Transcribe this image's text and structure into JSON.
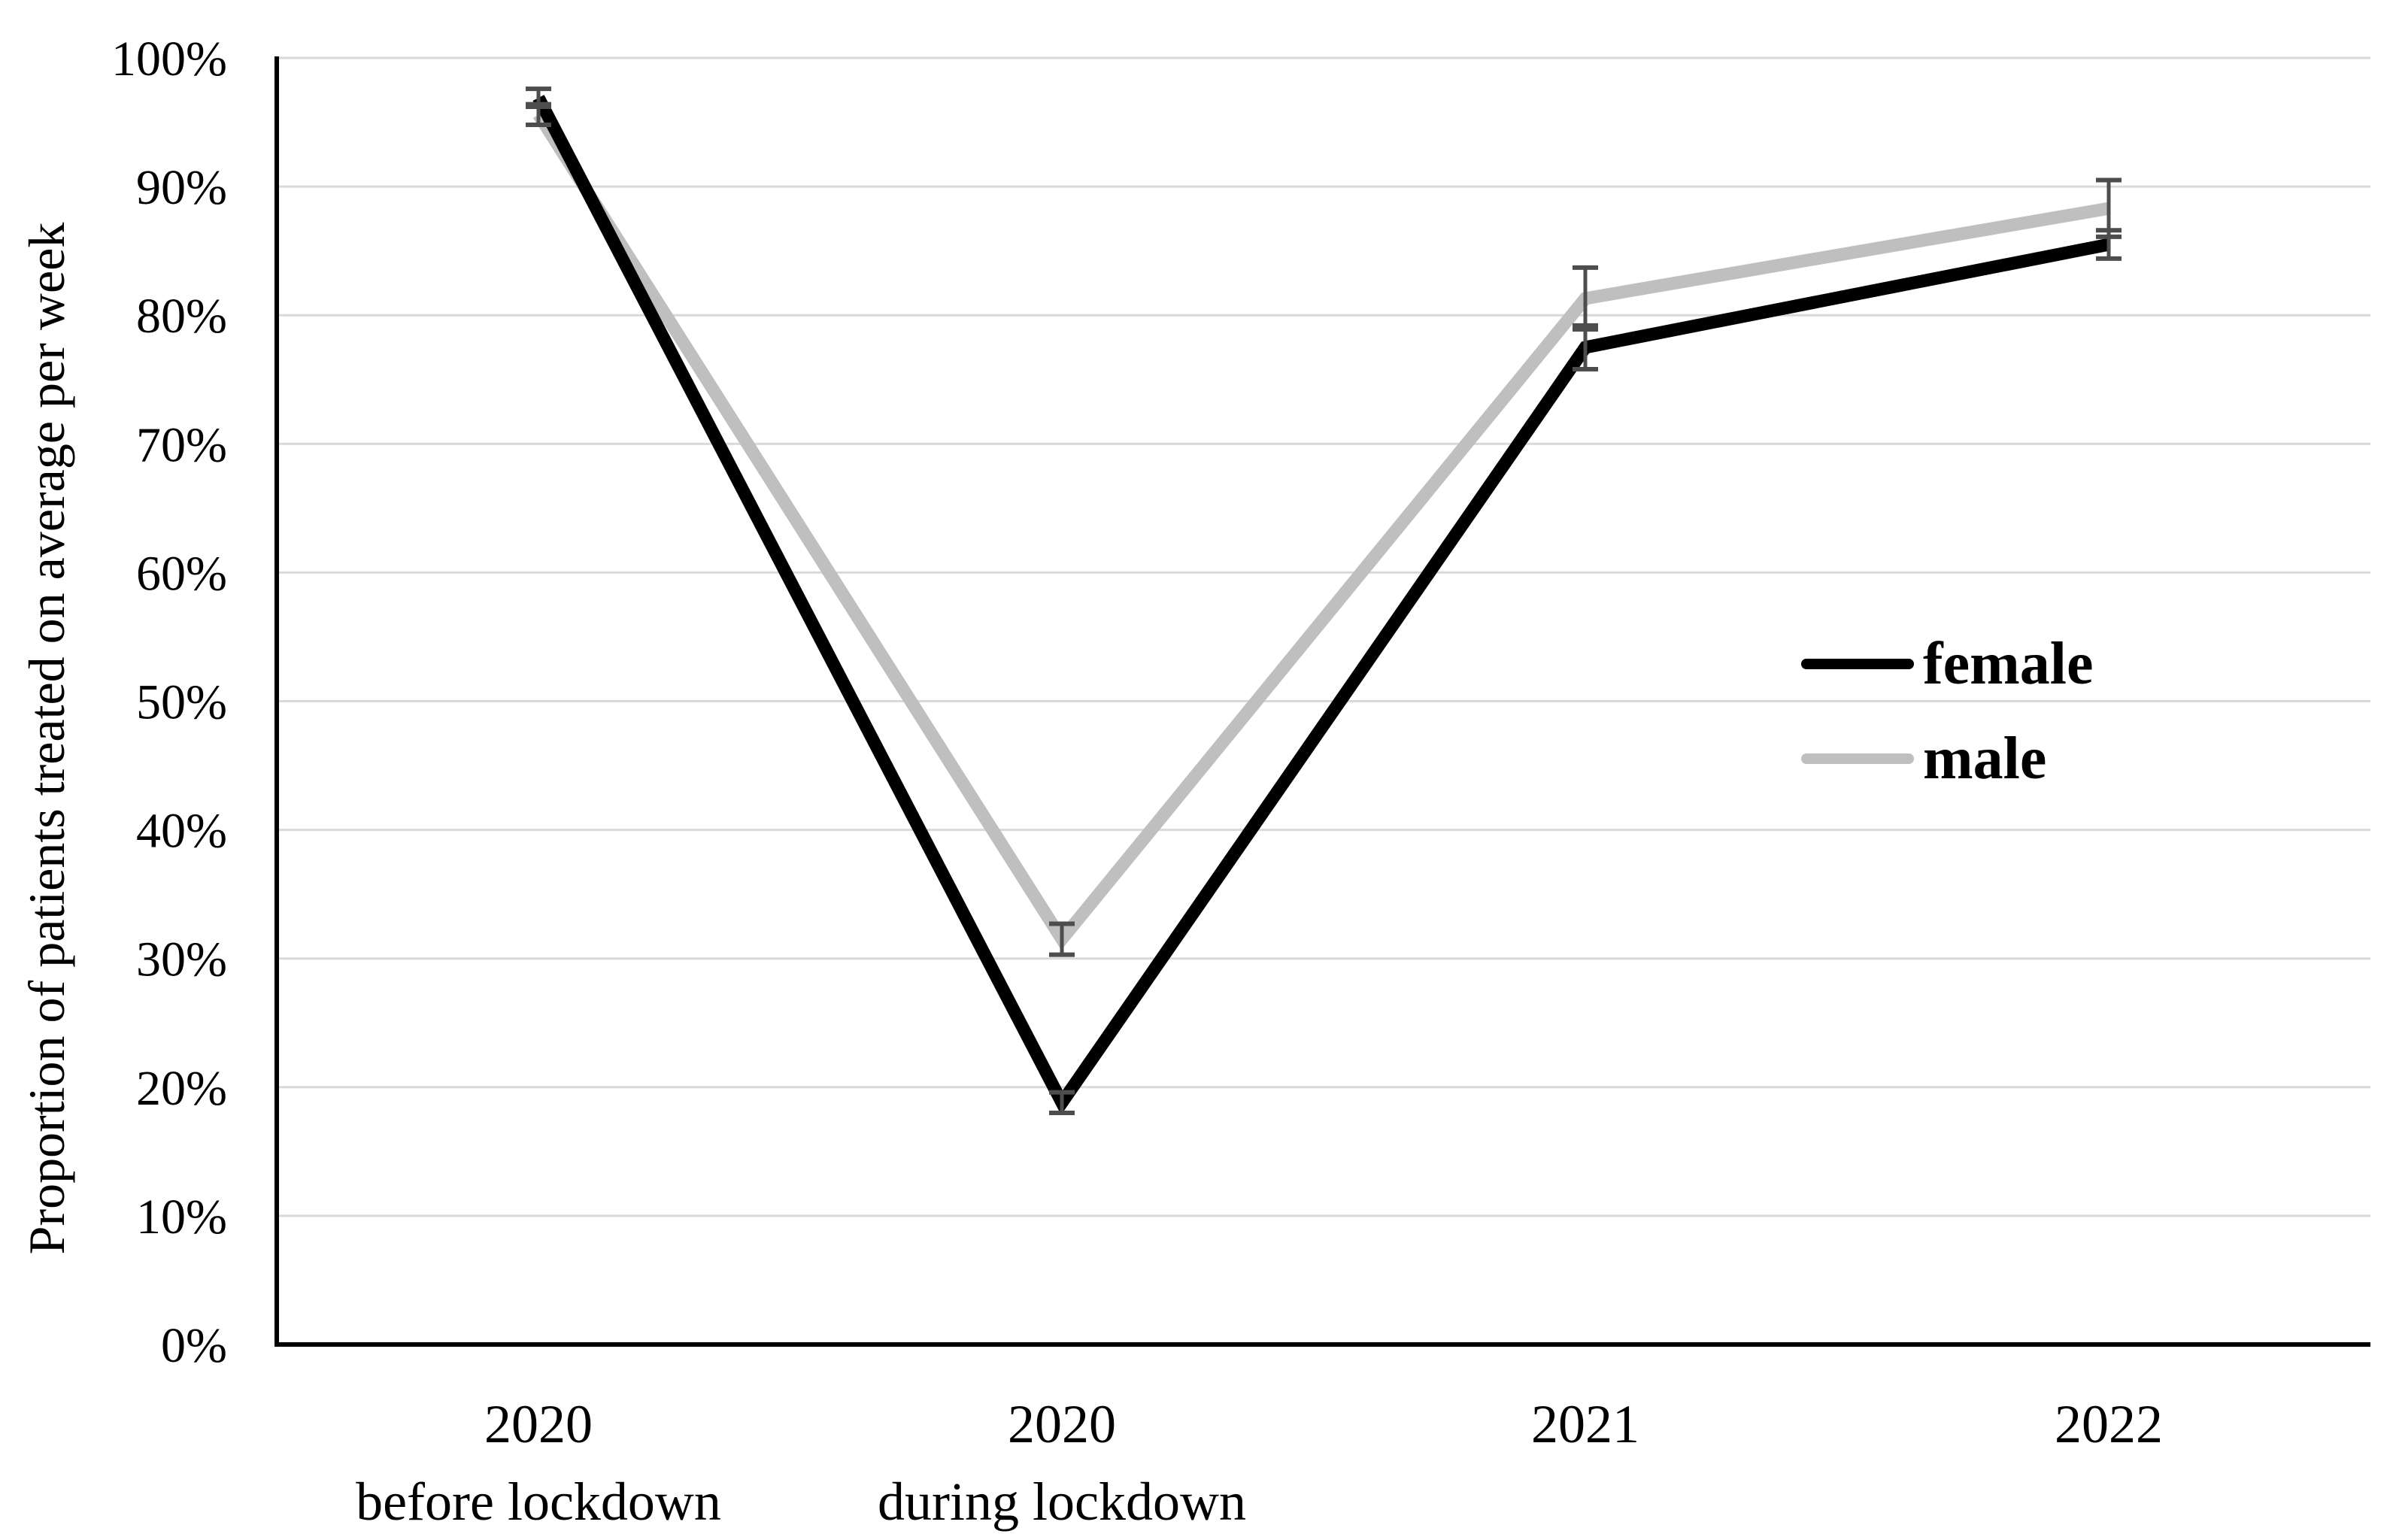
{
  "figure": {
    "background": "#ffffff"
  },
  "chart_data": {
    "type": "line",
    "title": "",
    "xlabel": "",
    "ylabel": "Proportion of patients treated on average per week",
    "categories": [
      "2020 before lockdown",
      "2020 during lockdown",
      "2021",
      "2022"
    ],
    "x_tick_labels": [
      {
        "line1": "2020",
        "line2": "before lockdown"
      },
      {
        "line1": "2020",
        "line2": "during lockdown"
      },
      {
        "line1": "2021",
        "line2": ""
      },
      {
        "line1": "2022",
        "line2": ""
      }
    ],
    "y_tick_labels": [
      "0%",
      "10%",
      "20%",
      "30%",
      "40%",
      "50%",
      "60%",
      "70%",
      "80%",
      "90%",
      "100%"
    ],
    "ylim": [
      0,
      100
    ],
    "y_tick_step": 10,
    "grid": "horizontal",
    "legend_position": "center-right",
    "series": [
      {
        "name": "female",
        "color": "#000000",
        "values": [
          96.9,
          18.8,
          77.5,
          85.5
        ],
        "error_bars": [
          0.7,
          0.8,
          1.7,
          1.1
        ]
      },
      {
        "name": "male",
        "color": "#bfbfbf",
        "values": [
          95.6,
          31.5,
          81.3,
          88.3
        ],
        "error_bars": [
          0.8,
          1.2,
          2.4,
          2.2
        ]
      }
    ],
    "error_bar_color": "#4d4d4d",
    "gridline_color": "#d9d9d9",
    "axis_color": "#000000"
  }
}
